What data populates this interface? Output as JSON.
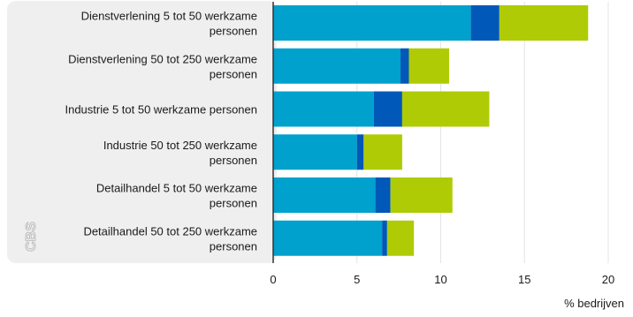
{
  "chart_data": {
    "type": "bar",
    "orientation": "horizontal",
    "stacked": true,
    "categories": [
      [
        "Dienstverlening 5 tot 50 werkzame",
        "personen"
      ],
      [
        "Dienstverlening 50 tot 250 werkzame",
        "personen"
      ],
      [
        "Industrie 5 tot 50 werkzame personen"
      ],
      [
        "Industrie 50 tot 250 werkzame",
        "personen"
      ],
      [
        "Detailhandel 5 tot 50 werkzame",
        "personen"
      ],
      [
        "Detailhandel 50 tot 250 werkzame",
        "personen"
      ]
    ],
    "series": [
      {
        "color": "#00a1cd",
        "values": [
          11.8,
          7.6,
          6.0,
          5.0,
          6.1,
          6.5
        ]
      },
      {
        "color": "#0058b8",
        "values": [
          1.7,
          0.5,
          1.7,
          0.4,
          0.9,
          0.3
        ]
      },
      {
        "color": "#afcb05",
        "values": [
          5.3,
          2.4,
          5.2,
          2.3,
          3.7,
          1.6
        ]
      }
    ],
    "xlim": [
      0,
      20
    ],
    "xticks": [
      0,
      5,
      10,
      15,
      20
    ],
    "xlabel": "% bedrijven",
    "grid": true,
    "logo": "CBS"
  }
}
